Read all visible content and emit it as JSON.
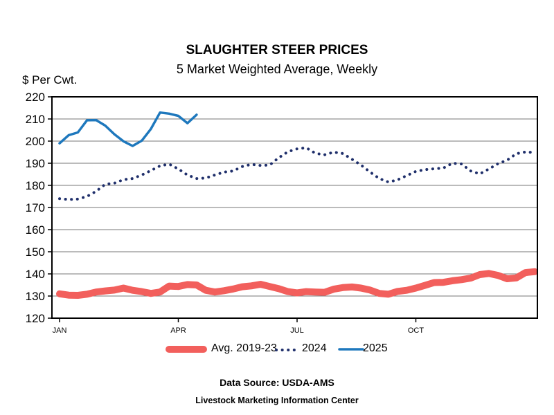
{
  "chart_data": {
    "type": "line",
    "title": "SLAUGHTER STEER PRICES",
    "subtitle": "5 Market Weighted Average, Weekly",
    "ylabel": "$ Per Cwt.",
    "xlabel": "",
    "ylim": [
      120,
      220
    ],
    "yticks": [
      120,
      130,
      140,
      150,
      160,
      170,
      180,
      190,
      200,
      210,
      220
    ],
    "xlim": [
      1,
      53
    ],
    "xticks": [
      {
        "week": 1,
        "label": "JAN"
      },
      {
        "week": 14,
        "label": "APR"
      },
      {
        "week": 27,
        "label": "JUL"
      },
      {
        "week": 40,
        "label": "OCT"
      }
    ],
    "grid": true,
    "legend": "bottom",
    "series": [
      {
        "name": "Avg. 2019-23",
        "color": "#f25f5c",
        "style": "thick",
        "weeks": [
          1,
          2,
          3,
          4,
          5,
          6,
          7,
          8,
          9,
          10,
          11,
          12,
          13,
          14,
          15,
          16,
          17,
          18,
          19,
          20,
          21,
          22,
          23,
          24,
          25,
          26,
          27,
          28,
          29,
          30,
          31,
          32,
          33,
          34,
          35,
          36,
          37,
          38,
          39,
          40,
          41,
          42,
          43,
          44,
          45,
          46,
          47,
          48,
          49,
          50,
          51,
          52,
          53
        ],
        "values": [
          131,
          130.4,
          130.3,
          130.8,
          131.8,
          132.3,
          132.7,
          133.6,
          132.6,
          132,
          131.2,
          131.8,
          134.5,
          134.3,
          135.2,
          135,
          132.6,
          131.8,
          132.4,
          133.2,
          134.2,
          134.6,
          135.3,
          134.3,
          133.3,
          132,
          131.4,
          132,
          131.8,
          131.7,
          133.1,
          133.8,
          134.1,
          133.6,
          132.7,
          131.2,
          130.8,
          132.1,
          132.6,
          133.6,
          134.8,
          136.1,
          136.2,
          136.9,
          137.4,
          138.1,
          139.7,
          140.2,
          139.3,
          137.8,
          138.2,
          140.6,
          141
        ]
      },
      {
        "name": "2024",
        "color": "#1f2f6b",
        "style": "dotted",
        "weeks": [
          1,
          2,
          3,
          4,
          5,
          6,
          7,
          8,
          9,
          10,
          11,
          12,
          13,
          14,
          15,
          16,
          17,
          18,
          19,
          20,
          21,
          22,
          23,
          24,
          25,
          26,
          27,
          28,
          29,
          30,
          31,
          32,
          33,
          34,
          35,
          36,
          37,
          38,
          39,
          40,
          41,
          42,
          43,
          44,
          45,
          46,
          47,
          48,
          49,
          50,
          51,
          52,
          53
        ],
        "values": [
          174,
          173.6,
          173.8,
          175,
          177.3,
          180.5,
          181,
          182.6,
          183.1,
          184.7,
          186.7,
          188.8,
          189.6,
          187.4,
          184.7,
          183.1,
          183.3,
          184.7,
          186,
          186.5,
          188.5,
          189.5,
          189,
          189.2,
          192.5,
          195.2,
          196.5,
          197,
          194.5,
          193.8,
          195,
          194.4,
          191.8,
          189.2,
          186,
          183.1,
          181.5,
          182.5,
          184.4,
          186.3,
          187.1,
          187.5,
          187.8,
          190,
          189.7,
          186.5,
          185.2,
          187.4,
          189.8,
          191.4,
          194.3,
          195.1,
          194.8
        ]
      },
      {
        "name": "2025",
        "color": "#1e78bd",
        "style": "solid",
        "weeks": [
          1,
          2,
          3,
          4,
          5,
          6,
          7,
          8,
          9,
          10,
          11,
          12,
          13,
          14,
          15,
          16,
          17
        ],
        "values": [
          199,
          202.7,
          203.9,
          209.4,
          209.5,
          207,
          203.1,
          199.9,
          197.8,
          200.2,
          205.5,
          212.9,
          212.4,
          211.4,
          208.1,
          211.9,
          null
        ]
      }
    ]
  },
  "footer": {
    "source": "Data Source:  USDA-AMS",
    "center": "Livestock Marketing Information Center"
  }
}
